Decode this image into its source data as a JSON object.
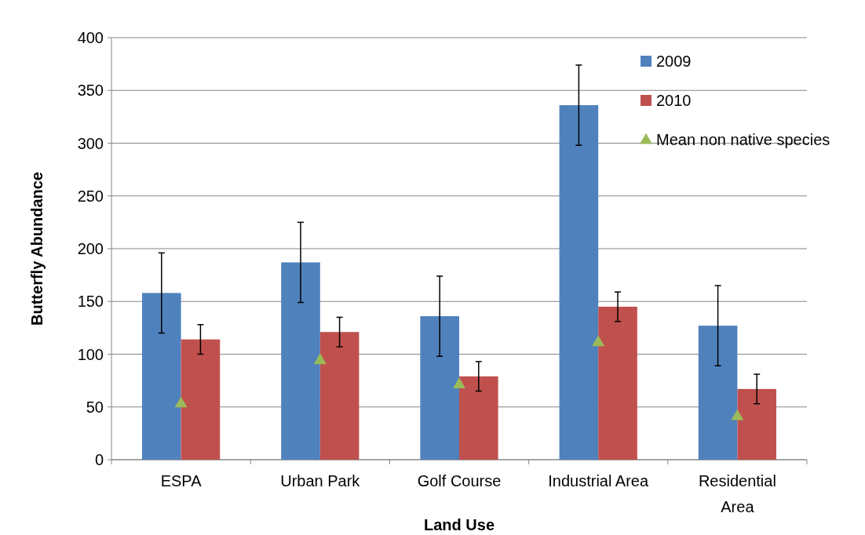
{
  "chart_data": {
    "type": "bar",
    "xlabel": "Land Use",
    "ylabel": "Butterfly  Abundance",
    "categories": [
      "ESPA",
      "Urban Park",
      "Golf Course",
      "Industrial Area",
      "Residential Area"
    ],
    "series": [
      {
        "name": "2009",
        "color": "#4f81bd",
        "values": [
          158,
          187,
          136,
          336,
          127
        ],
        "errors": [
          38,
          38,
          38,
          38,
          38
        ]
      },
      {
        "name": "2010",
        "color": "#c0504d",
        "values": [
          114,
          121,
          79,
          145,
          67
        ],
        "errors": [
          14,
          14,
          14,
          14,
          14
        ]
      },
      {
        "name": "Mean non native species",
        "type": "scatter",
        "color": "#9bbb59",
        "x": [
          "ESPA",
          "Urban Park",
          "Golf Course",
          "Industrial Area",
          "Residential Area"
        ],
        "values": [
          53,
          94,
          71,
          111,
          41
        ]
      }
    ],
    "marker": "triangle",
    "ylim": [
      0,
      400
    ],
    "yticks": [
      0,
      50,
      100,
      150,
      200,
      250,
      300,
      350,
      400
    ],
    "grid": "y",
    "legend": "top right"
  }
}
